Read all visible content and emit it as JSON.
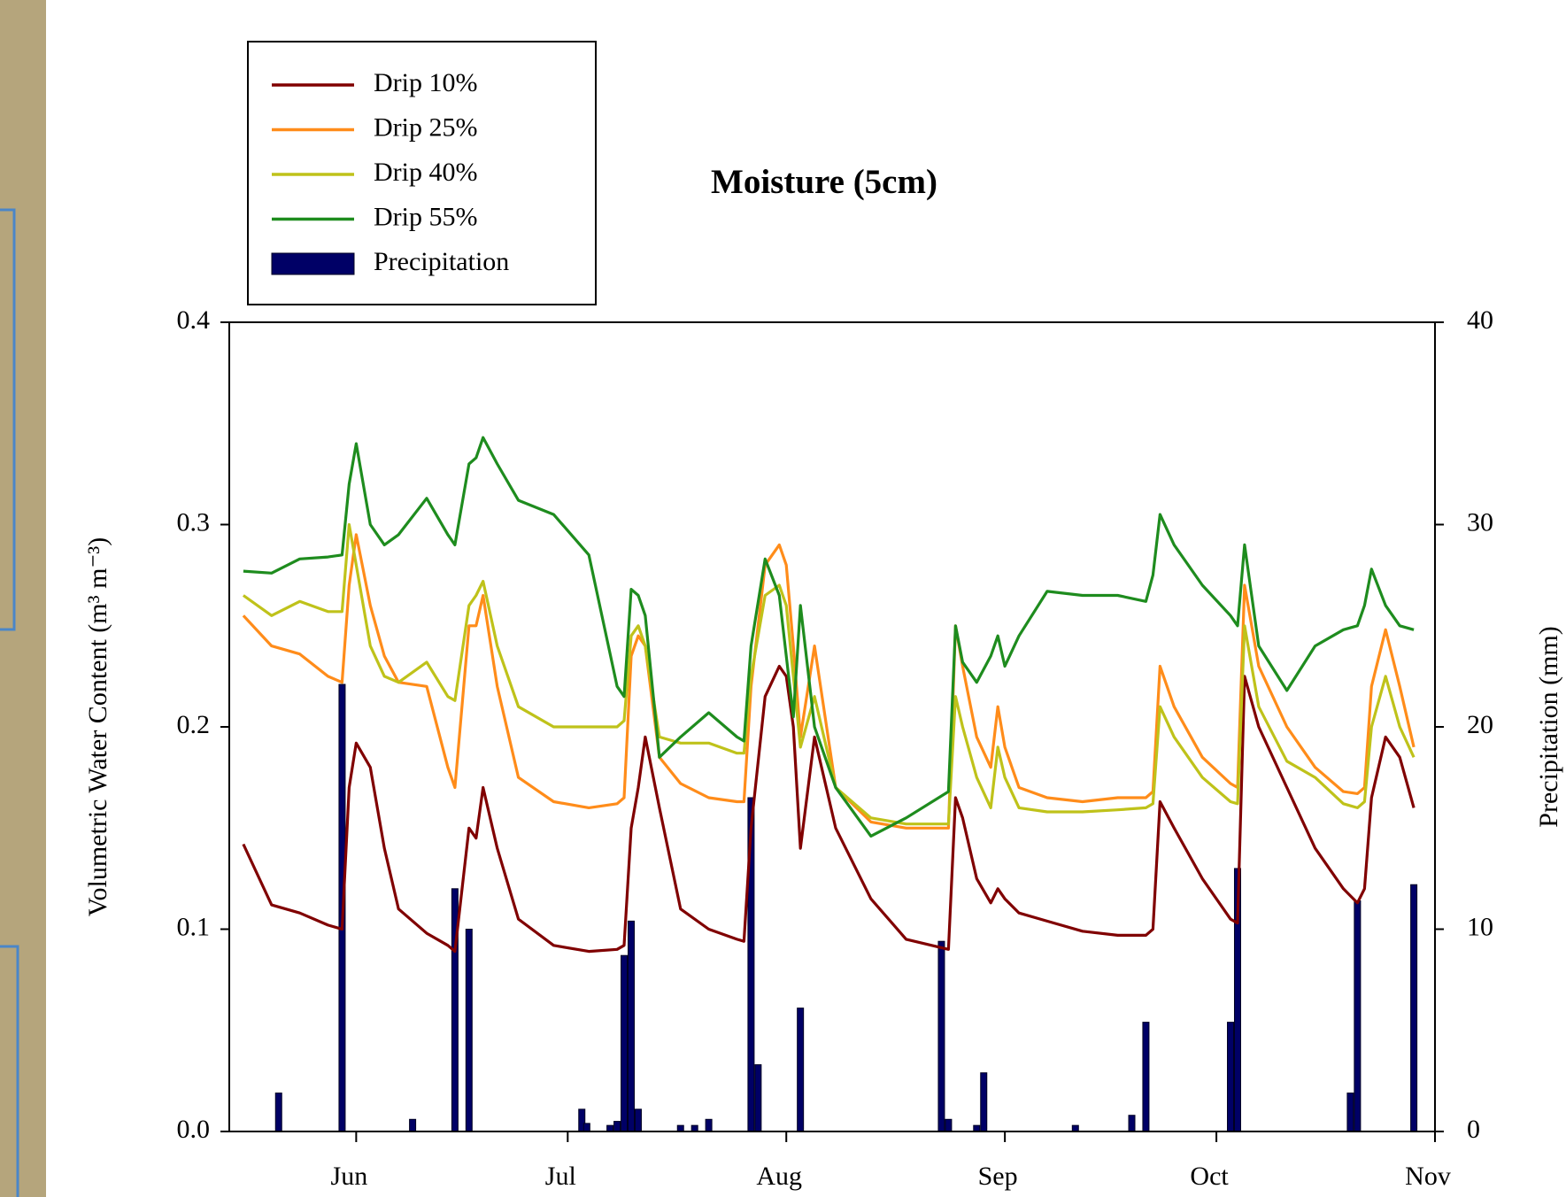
{
  "chart_data": {
    "type": "line",
    "title": "Moisture (5cm)",
    "y_label": "Volumetric Water Content (m³ m⁻³)",
    "y2_label": "Precipitation (mm)",
    "x": [
      136,
      140,
      144,
      148,
      150,
      151,
      152,
      154,
      156,
      158,
      162,
      165,
      166,
      168,
      169,
      170,
      172,
      175,
      180,
      185,
      189,
      190,
      191,
      192,
      193,
      195,
      198,
      202,
      206,
      207,
      208,
      210,
      212,
      213,
      214,
      215,
      217,
      220,
      225,
      230,
      236,
      237,
      238,
      240,
      242,
      243,
      244,
      246,
      250,
      255,
      260,
      264,
      265,
      266,
      268,
      272,
      276,
      277,
      278,
      280,
      284,
      288,
      292,
      294,
      295,
      296,
      298,
      300,
      302
    ],
    "xlim": [
      134,
      305
    ],
    "xticks": [
      {
        "value": 152,
        "label": "Jun"
      },
      {
        "value": 182,
        "label": "Jul"
      },
      {
        "value": 213,
        "label": "Aug"
      },
      {
        "value": 244,
        "label": "Sep"
      },
      {
        "value": 274,
        "label": "Oct"
      },
      {
        "value": 305,
        "label": "Nov"
      }
    ],
    "ylim": [
      0,
      0.4
    ],
    "yticks": [
      {
        "value": 0,
        "label": "0.0"
      },
      0.1,
      0.2,
      0.3,
      0.4
    ],
    "y2lim": [
      0,
      40
    ],
    "y2ticks": [
      0,
      10,
      20,
      30,
      40
    ],
    "legend": "top-left",
    "series": [
      {
        "name": "Drip 10%",
        "color": "#800000",
        "values": [
          0.142,
          0.112,
          0.108,
          0.102,
          0.1,
          0.17,
          0.192,
          0.18,
          0.14,
          0.11,
          0.098,
          0.092,
          0.089,
          0.15,
          0.145,
          0.17,
          0.14,
          0.105,
          0.092,
          0.089,
          0.09,
          0.092,
          0.15,
          0.17,
          0.195,
          0.16,
          0.11,
          0.1,
          0.095,
          0.094,
          0.15,
          0.215,
          0.23,
          0.225,
          0.2,
          0.14,
          0.195,
          0.15,
          0.115,
          0.095,
          0.09,
          0.165,
          0.155,
          0.125,
          0.113,
          0.12,
          0.115,
          0.108,
          0.104,
          0.099,
          0.097,
          0.097,
          0.1,
          0.163,
          0.15,
          0.125,
          0.105,
          0.103,
          0.225,
          0.2,
          0.17,
          0.14,
          0.12,
          0.113,
          0.12,
          0.165,
          0.195,
          0.185,
          0.16
        ]
      },
      {
        "name": "Drip 25%",
        "color": "#ff8c1a",
        "values": [
          0.255,
          0.24,
          0.236,
          0.225,
          0.222,
          0.27,
          0.295,
          0.26,
          0.235,
          0.222,
          0.22,
          0.18,
          0.17,
          0.25,
          0.25,
          0.265,
          0.22,
          0.175,
          0.163,
          0.16,
          0.162,
          0.165,
          0.235,
          0.245,
          0.24,
          0.185,
          0.172,
          0.165,
          0.163,
          0.163,
          0.22,
          0.28,
          0.29,
          0.28,
          0.24,
          0.195,
          0.24,
          0.17,
          0.153,
          0.15,
          0.15,
          0.25,
          0.23,
          0.195,
          0.18,
          0.21,
          0.19,
          0.17,
          0.165,
          0.163,
          0.165,
          0.165,
          0.168,
          0.23,
          0.21,
          0.185,
          0.172,
          0.17,
          0.27,
          0.23,
          0.2,
          0.18,
          0.168,
          0.167,
          0.17,
          0.22,
          0.248,
          0.22,
          0.19
        ]
      },
      {
        "name": "Drip 40%",
        "color": "#bfc21a",
        "values": [
          0.265,
          0.255,
          0.262,
          0.257,
          0.257,
          0.3,
          0.28,
          0.24,
          0.225,
          0.222,
          0.232,
          0.215,
          0.213,
          0.26,
          0.265,
          0.272,
          0.24,
          0.21,
          0.2,
          0.2,
          0.2,
          0.203,
          0.245,
          0.25,
          0.24,
          0.195,
          0.192,
          0.192,
          0.187,
          0.187,
          0.225,
          0.265,
          0.27,
          0.26,
          0.225,
          0.19,
          0.215,
          0.17,
          0.155,
          0.152,
          0.152,
          0.215,
          0.2,
          0.175,
          0.16,
          0.19,
          0.175,
          0.16,
          0.158,
          0.158,
          0.159,
          0.16,
          0.162,
          0.21,
          0.195,
          0.175,
          0.163,
          0.162,
          0.25,
          0.21,
          0.183,
          0.175,
          0.162,
          0.16,
          0.163,
          0.2,
          0.225,
          0.2,
          0.185
        ]
      },
      {
        "name": "Drip 55%",
        "color": "#1e8c1e",
        "values": [
          0.277,
          0.276,
          0.283,
          0.284,
          0.285,
          0.32,
          0.34,
          0.3,
          0.29,
          0.295,
          0.313,
          0.295,
          0.29,
          0.33,
          0.333,
          0.343,
          0.33,
          0.312,
          0.305,
          0.285,
          0.22,
          0.215,
          0.268,
          0.265,
          0.255,
          0.185,
          0.195,
          0.207,
          0.195,
          0.193,
          0.24,
          0.283,
          0.265,
          0.235,
          0.205,
          0.26,
          0.2,
          0.17,
          0.146,
          0.155,
          0.168,
          0.25,
          0.232,
          0.222,
          0.235,
          0.245,
          0.23,
          0.245,
          0.267,
          0.265,
          0.265,
          0.262,
          0.275,
          0.305,
          0.29,
          0.27,
          0.255,
          0.25,
          0.29,
          0.24,
          0.218,
          0.24,
          0.248,
          0.25,
          0.26,
          0.278,
          0.26,
          0.25,
          0.248
        ]
      },
      {
        "name": "Precipitation",
        "type": "bar",
        "axis": "y2",
        "color": "#000066",
        "x": [
          141,
          150,
          160,
          166,
          168,
          184,
          184.7,
          188,
          189,
          190,
          191,
          192,
          198,
          200,
          202,
          208,
          209,
          215,
          235,
          236,
          240,
          241,
          254,
          262,
          264,
          276,
          277,
          293,
          294,
          302
        ],
        "values": [
          1.9,
          22.1,
          0.6,
          12,
          10,
          1.1,
          0.4,
          0.3,
          0.5,
          8.7,
          10.4,
          1.1,
          0.3,
          0.3,
          0.6,
          16.5,
          3.3,
          6.1,
          9.4,
          0.6,
          0.3,
          2.9,
          0.3,
          0.8,
          5.4,
          5.4,
          13,
          1.9,
          11.4,
          12.2
        ]
      }
    ]
  }
}
